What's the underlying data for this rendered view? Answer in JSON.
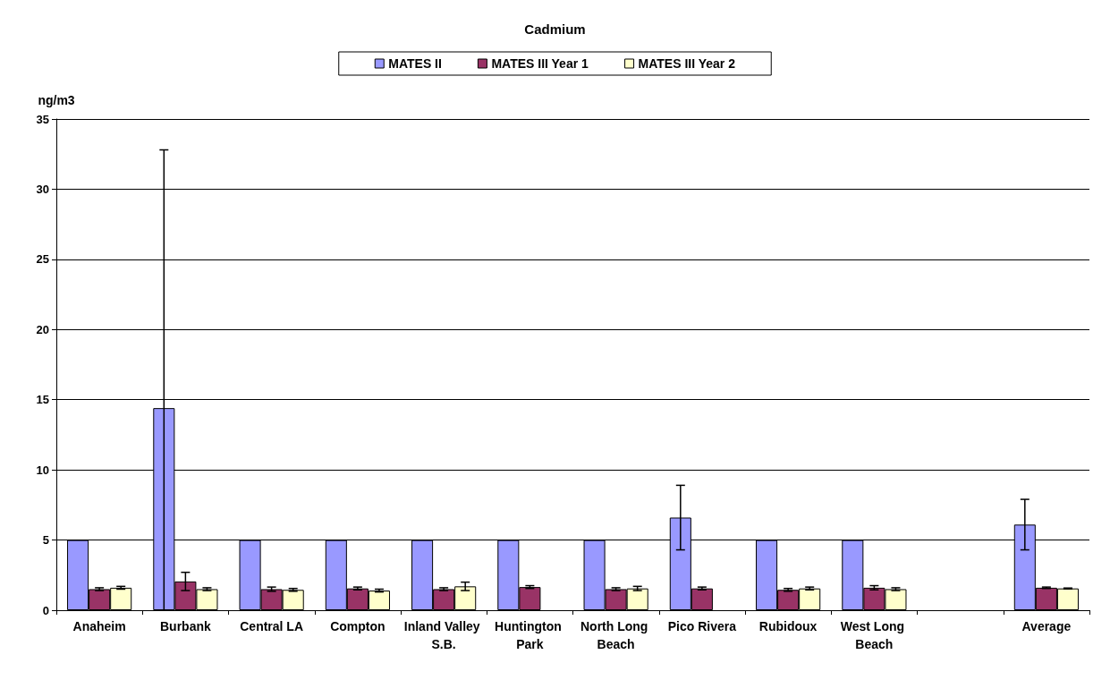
{
  "chart_data": {
    "type": "bar",
    "title": "Cadmium",
    "ylabel": "ng/m3",
    "categories": [
      "Anaheim",
      "Burbank",
      "Central LA",
      "Compton",
      "Inland Valley S.B.",
      "Huntington Park",
      "North Long Beach",
      "Pico Rivera",
      "Rubidoux",
      "West Long Beach",
      null,
      "Average"
    ],
    "series": [
      {
        "name": "MATES II",
        "color": "#9999ff",
        "values": [
          5,
          14.4,
          5,
          5,
          5,
          5,
          5,
          6.6,
          5,
          5,
          null,
          6.1
        ],
        "errors": [
          null,
          [
            0,
            32.8
          ],
          null,
          null,
          null,
          null,
          null,
          [
            4.3,
            8.9
          ],
          null,
          null,
          null,
          [
            4.3,
            7.9
          ]
        ]
      },
      {
        "name": "MATES III Year 1",
        "color": "#993366",
        "values": [
          1.5,
          2.05,
          1.5,
          1.55,
          1.5,
          1.65,
          1.5,
          1.55,
          1.45,
          1.6,
          null,
          1.6
        ],
        "errors": [
          0.1,
          [
            1.4,
            2.7
          ],
          0.15,
          0.1,
          0.1,
          0.1,
          0.1,
          0.1,
          0.1,
          0.15,
          null,
          0.05
        ]
      },
      {
        "name": "MATES III Year 2",
        "color": "#ffffcc",
        "values": [
          1.6,
          1.5,
          1.45,
          1.4,
          1.7,
          null,
          1.55,
          null,
          1.55,
          1.5,
          null,
          1.55
        ],
        "errors": [
          0.1,
          0.1,
          0.1,
          0.1,
          [
            1.4,
            2.0
          ],
          null,
          0.15,
          null,
          0.1,
          0.1,
          null,
          0.03
        ]
      }
    ],
    "ylim": [
      0,
      35
    ],
    "yticks": [
      0,
      5,
      10,
      15,
      20,
      25,
      30,
      35
    ],
    "grid": "y",
    "legend": "top"
  }
}
